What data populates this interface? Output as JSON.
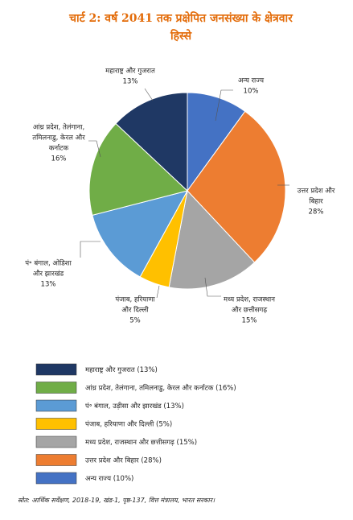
{
  "chart_data": {
    "type": "pie",
    "title": "चार्ट 2: वर्ष 2041 तक प्रक्षेपित जनसंख्या के क्षेत्रवार हिस्से",
    "categories": [
      [
        "अन्य राज्य"
      ],
      [
        "उत्तर प्रदेश और",
        "बिहार"
      ],
      [
        "मध्य प्रदेश, राजस्थान",
        "और छत्तीसगढ़"
      ],
      [
        "पंजाब, हरियाणा",
        "और दिल्ली"
      ],
      [
        "पं॰ बंगाल, ओडिशा",
        "और झारखंड"
      ],
      [
        "आंध्र प्रदेश, तेलंगाना,",
        "तमिलनाडु, केरल और",
        "कर्नाटक"
      ],
      [
        "महाराष्ट्र और गुजरात"
      ]
    ],
    "values": [
      10,
      28,
      15,
      5,
      13,
      16,
      13
    ],
    "value_labels": [
      "10%",
      "28%",
      "15%",
      "5%",
      "13%",
      "16%",
      "13%"
    ],
    "colors": [
      "#4472c4",
      "#ed7d31",
      "#a5a5a5",
      "#ffc000",
      "#5b9bd5",
      "#70ad47",
      "#1f3864"
    ],
    "legend": [
      "महाराष्ट्र और गुजरात (13%)",
      "आंध्र प्रदेश, तेलंगाना, तमिलनाडु, केरल और कर्नाटक (16%)",
      "पं॰ बंगाल, उड़ीसा और झारखंड (13%)",
      "पंजाब, हरियाणा और दिल्ली (5%)",
      "मध्य प्रदेश, राजस्थान और छत्तीसगढ़ (15%)",
      "उत्तर प्रदेश और बिहार (28%)",
      "अन्य राज्य (10%)"
    ],
    "source": "स्रोत: आर्थिक सर्वेक्षण, 2018-19, खंड-1, पृष्ठ-137, वित्त मंत्रालय, भारत सरकार।"
  }
}
